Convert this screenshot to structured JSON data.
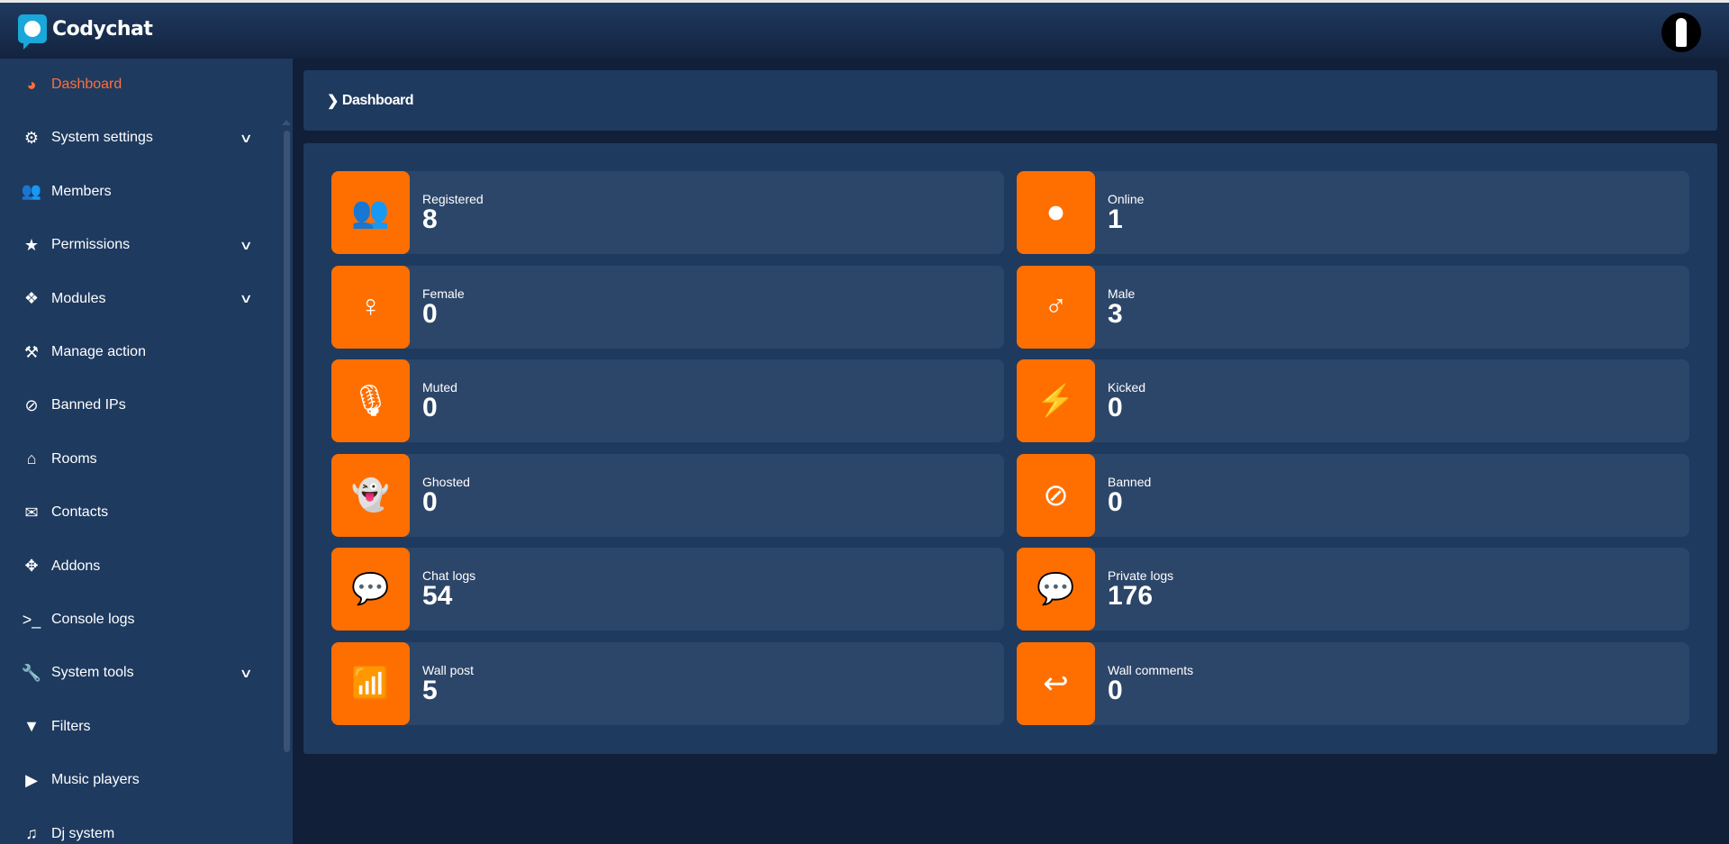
{
  "app": {
    "name": "Codychat"
  },
  "sidebar": {
    "items": [
      {
        "label": "Dashboard",
        "icon": "dashboard-icon",
        "glyph": "◕",
        "active": true
      },
      {
        "label": "System settings",
        "icon": "gears-icon",
        "glyph": "⚙",
        "expandable": true
      },
      {
        "label": "Members",
        "icon": "users-icon",
        "glyph": "👥"
      },
      {
        "label": "Permissions",
        "icon": "star-icon",
        "glyph": "★",
        "expandable": true
      },
      {
        "label": "Modules",
        "icon": "cubes-icon",
        "glyph": "❖",
        "expandable": true
      },
      {
        "label": "Manage action",
        "icon": "gavel-icon",
        "glyph": "⚒"
      },
      {
        "label": "Banned IPs",
        "icon": "ban-icon",
        "glyph": "⊘"
      },
      {
        "label": "Rooms",
        "icon": "home-icon",
        "glyph": "⌂"
      },
      {
        "label": "Contacts",
        "icon": "envelope-icon",
        "glyph": "✉"
      },
      {
        "label": "Addons",
        "icon": "puzzle-icon",
        "glyph": "✥"
      },
      {
        "label": "Console logs",
        "icon": "terminal-icon",
        "glyph": ">_"
      },
      {
        "label": "System tools",
        "icon": "wrench-icon",
        "glyph": "🔧",
        "expandable": true
      },
      {
        "label": "Filters",
        "icon": "filter-icon",
        "glyph": "▼"
      },
      {
        "label": "Music players",
        "icon": "play-icon",
        "glyph": "▶"
      },
      {
        "label": "Dj system",
        "icon": "music-icon",
        "glyph": "♫"
      }
    ]
  },
  "breadcrumb": {
    "label": "Dashboard"
  },
  "stats": [
    {
      "label": "Registered",
      "value": "8",
      "icon": "users-icon",
      "glyph": "👥"
    },
    {
      "label": "Online",
      "value": "1",
      "icon": "toggle-on-icon",
      "glyph": "⏺"
    },
    {
      "label": "Female",
      "value": "0",
      "icon": "female-icon",
      "glyph": "♀"
    },
    {
      "label": "Male",
      "value": "3",
      "icon": "male-icon",
      "glyph": "♂"
    },
    {
      "label": "Muted",
      "value": "0",
      "icon": "microphone-slash-icon",
      "glyph": "🎙"
    },
    {
      "label": "Kicked",
      "value": "0",
      "icon": "bolt-icon",
      "glyph": "⚡"
    },
    {
      "label": "Ghosted",
      "value": "0",
      "icon": "ghost-icon",
      "glyph": "👻"
    },
    {
      "label": "Banned",
      "value": "0",
      "icon": "ban-icon",
      "glyph": "⊘"
    },
    {
      "label": "Chat logs",
      "value": "54",
      "icon": "comments-icon",
      "glyph": "💬"
    },
    {
      "label": "Private logs",
      "value": "176",
      "icon": "comments-icon",
      "glyph": "💬"
    },
    {
      "label": "Wall post",
      "value": "5",
      "icon": "rss-icon",
      "glyph": "📶"
    },
    {
      "label": "Wall comments",
      "value": "0",
      "icon": "reply-icon",
      "glyph": "↩"
    }
  ],
  "colors": {
    "accent": "#ff6f00",
    "active": "#ff6f3c",
    "panel": "#1f3a5f",
    "card": "#2c4669"
  }
}
